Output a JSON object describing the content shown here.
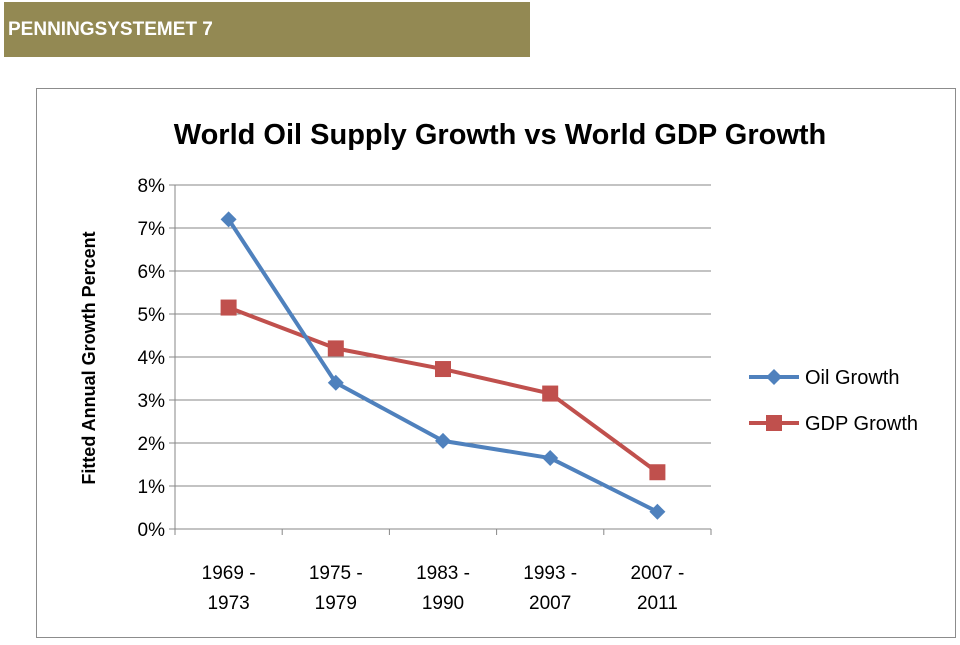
{
  "header": {
    "title": "PENNINGSYSTEMET 7"
  },
  "chart_data": {
    "type": "line",
    "title": "World Oil Supply Growth vs World GDP Growth",
    "xlabel": "",
    "ylabel": "Fitted Annual Growth Percent",
    "categories": [
      [
        "1969 -",
        "1973"
      ],
      [
        "1975 -",
        "1979"
      ],
      [
        "1983 -",
        "1990"
      ],
      [
        "1993 -",
        "2007"
      ],
      [
        "2007 -",
        "2011"
      ]
    ],
    "y_ticks": [
      "0%",
      "1%",
      "2%",
      "3%",
      "4%",
      "5%",
      "6%",
      "7%",
      "8%"
    ],
    "ylim": [
      0,
      8
    ],
    "grid": true,
    "legend_position": "right",
    "series": [
      {
        "name": "Oil Growth",
        "color": "#4F81BD",
        "marker": "diamond",
        "values": [
          7.2,
          3.4,
          2.05,
          1.65,
          0.4
        ]
      },
      {
        "name": "GDP Growth",
        "color": "#C0504D",
        "marker": "square",
        "values": [
          5.15,
          4.2,
          3.72,
          3.15,
          1.32
        ]
      }
    ]
  }
}
